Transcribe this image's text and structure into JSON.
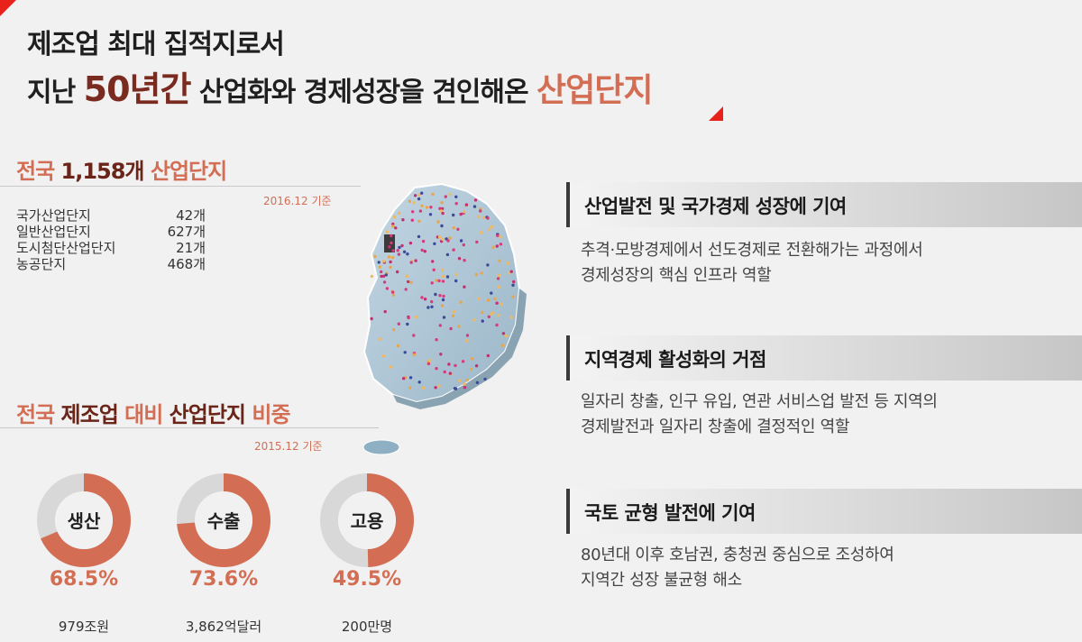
{
  "headline": {
    "line1": "제조업 최대 집적지로서",
    "line2_pre": "지난 ",
    "line2_years": "50년간",
    "line2_mid": " 산업화와 경제성장을 견인해온 ",
    "line2_accent": "산업단지"
  },
  "complexes": {
    "title_pre": "전국 ",
    "title_count": "1,158개",
    "title_post": " 산업단지",
    "basis": "2016.12 기준",
    "items": [
      {
        "name": "국가산업단지",
        "count": "42개"
      },
      {
        "name": "일반산업단지",
        "count": "627개"
      },
      {
        "name": "도시첨단산업단지",
        "count": "21개"
      },
      {
        "name": "농공단지",
        "count": "468개"
      }
    ]
  },
  "share": {
    "title_a": "전국",
    "title_b": "제조업",
    "title_c": "대비",
    "title_d": "산업단지",
    "title_e": "비중",
    "basis": "2015.12 기준",
    "metrics": [
      {
        "label": "생산",
        "percent": "68.5%",
        "fraction": 0.685,
        "amount": "979조원"
      },
      {
        "label": "수출",
        "percent": "73.6%",
        "fraction": 0.736,
        "amount": "3,862억달러"
      },
      {
        "label": "고용",
        "percent": "49.5%",
        "fraction": 0.495,
        "amount": "200만명"
      }
    ]
  },
  "roles": [
    {
      "title": "산업발전 및 국가경제 성장에 기여",
      "desc_line1": "추격·모방경제에서 선도경제로 전환해가는 과정에서",
      "desc_line2": "경제성장의 핵심 인프라 역할"
    },
    {
      "title": "지역경제 활성화의 거점",
      "desc_line1": "일자리 창출, 인구 유입, 연관 서비스업 발전 등 지역의",
      "desc_line2": "경제발전과 일자리 창출에 결정적인 역할"
    },
    {
      "title": "국토 균형 발전에 기여",
      "desc_line1": "80년대 이후 호남권, 충청권 중심으로 조성하여",
      "desc_line2": "지역간 성장 불균형 해소"
    }
  ],
  "colors": {
    "accent": "#d36e55",
    "dark_accent": "#6a2418",
    "donut_track": "#d8d8d8",
    "corner": "#e8221b"
  },
  "icons": {
    "map": "south-korea-map-icon"
  }
}
